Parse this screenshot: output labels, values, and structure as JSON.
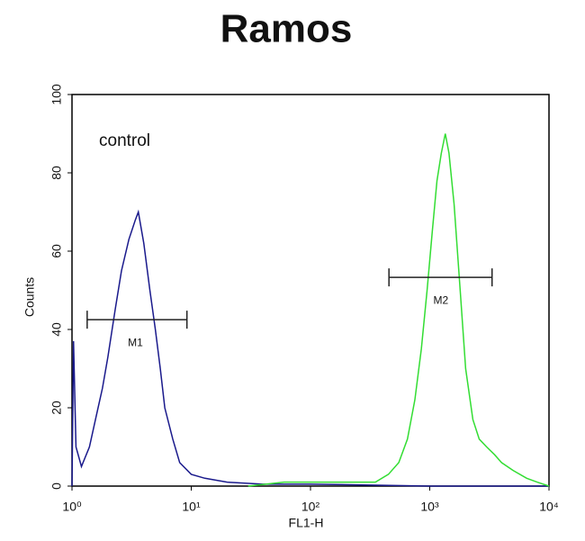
{
  "chart_data": {
    "type": "line",
    "title": "Ramos",
    "annotation": "control",
    "xlabel": "FL1-H",
    "ylabel": "Counts",
    "xscale": "log",
    "xlim": [
      1,
      10000
    ],
    "xticks": [
      {
        "value": 1,
        "label": "10⁰"
      },
      {
        "value": 10,
        "label": "10¹"
      },
      {
        "value": 100,
        "label": "10²"
      },
      {
        "value": 1000,
        "label": "10³"
      },
      {
        "value": 10000,
        "label": "10⁴"
      }
    ],
    "ylim": [
      0,
      100
    ],
    "yticks": [
      0,
      20,
      40,
      60,
      80,
      100
    ],
    "series": [
      {
        "name": "control",
        "color": "#1a1a8c",
        "x": [
          1.0,
          1.03,
          1.08,
          1.2,
          1.4,
          1.6,
          1.8,
          2.0,
          2.3,
          2.6,
          3.0,
          3.4,
          3.6,
          4.0,
          4.5,
          5.0,
          5.5,
          6.0,
          7.0,
          8.0,
          10,
          13,
          20,
          40,
          100,
          1000,
          10000
        ],
        "values": [
          0,
          37,
          10,
          5,
          10,
          18,
          25,
          33,
          45,
          55,
          63,
          68,
          70,
          62,
          50,
          40,
          30,
          20,
          12,
          6,
          3,
          2,
          1,
          0.5,
          0.5,
          0,
          0
        ]
      },
      {
        "name": "Ramos",
        "color": "#33dd33",
        "x": [
          30,
          60,
          100,
          200,
          350,
          450,
          550,
          650,
          750,
          850,
          950,
          1050,
          1150,
          1250,
          1350,
          1450,
          1600,
          1800,
          2000,
          2300,
          2600,
          3000,
          3500,
          4000,
          5000,
          6500,
          8000,
          10000
        ],
        "values": [
          0,
          1,
          1,
          1,
          1,
          3,
          6,
          12,
          22,
          35,
          50,
          65,
          78,
          85,
          90,
          85,
          72,
          50,
          30,
          17,
          12,
          10,
          8,
          6,
          4,
          2,
          1,
          0
        ]
      }
    ],
    "markers": [
      {
        "label": "M1",
        "range": [
          1.34,
          9.2
        ],
        "y": 42.5,
        "label_x": 3.4
      },
      {
        "label": "M2",
        "range": [
          455,
          3330
        ],
        "y": 53.3,
        "label_x": 1240
      }
    ]
  }
}
